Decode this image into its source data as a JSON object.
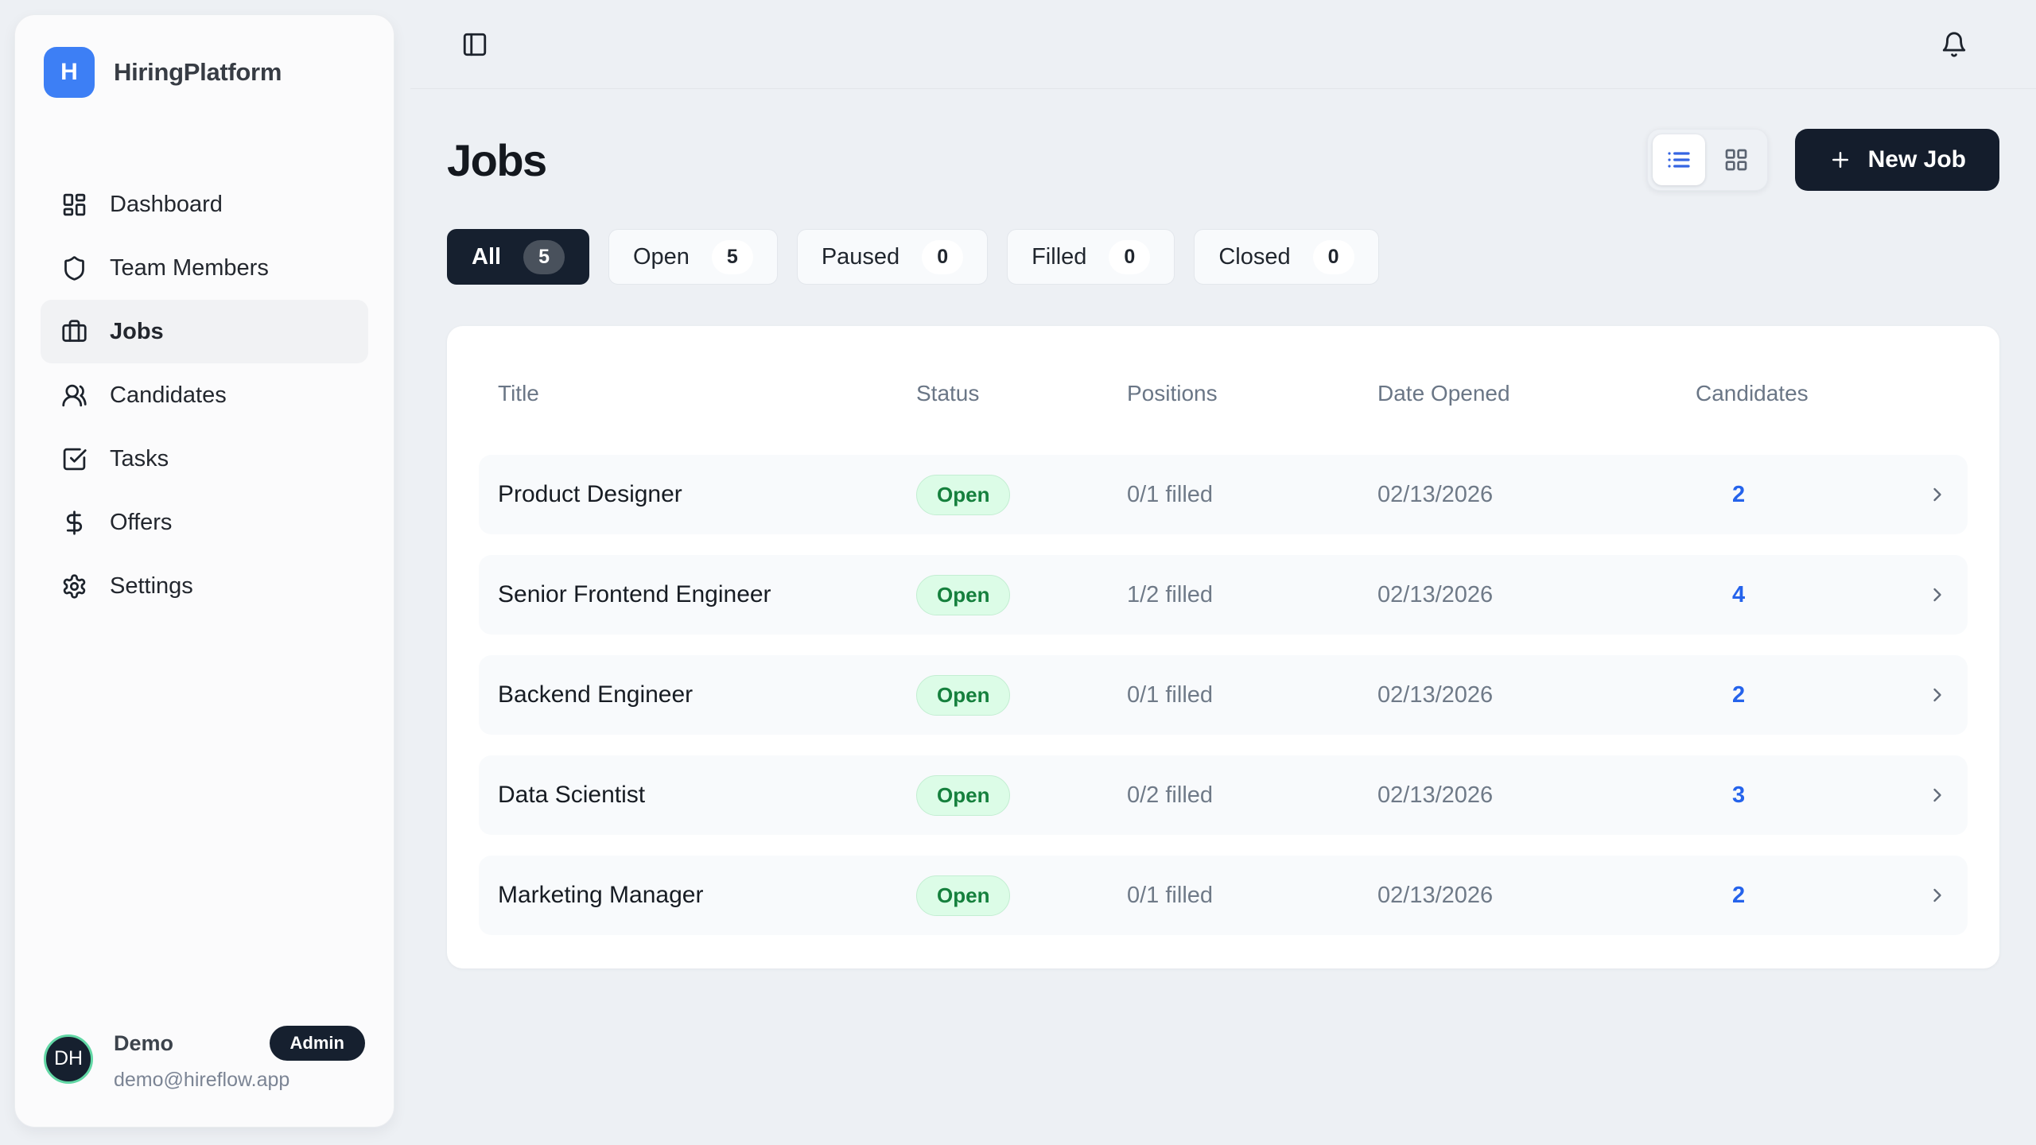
{
  "brand": {
    "name": "HiringPlatform",
    "logo_letter": "H"
  },
  "sidebar": {
    "nav": [
      {
        "label": "Dashboard",
        "icon": "dashboard",
        "active": false
      },
      {
        "label": "Team Members",
        "icon": "shield",
        "active": false
      },
      {
        "label": "Jobs",
        "icon": "briefcase",
        "active": true
      },
      {
        "label": "Candidates",
        "icon": "users",
        "active": false
      },
      {
        "label": "Tasks",
        "icon": "check-square",
        "active": false
      },
      {
        "label": "Offers",
        "icon": "dollar",
        "active": false
      },
      {
        "label": "Settings",
        "icon": "gear",
        "active": false
      }
    ],
    "user": {
      "initials": "DH",
      "name": "Demo",
      "role": "Admin",
      "email": "demo@hireflow.app"
    }
  },
  "page": {
    "title": "Jobs",
    "actions": {
      "new_job": "New Job"
    },
    "view_toggle": {
      "active": "list"
    },
    "filters": [
      {
        "label": "All",
        "count": "5",
        "active": true
      },
      {
        "label": "Open",
        "count": "5",
        "active": false
      },
      {
        "label": "Paused",
        "count": "0",
        "active": false
      },
      {
        "label": "Filled",
        "count": "0",
        "active": false
      },
      {
        "label": "Closed",
        "count": "0",
        "active": false
      }
    ],
    "table": {
      "headers": {
        "title": "Title",
        "status": "Status",
        "positions": "Positions",
        "date_opened": "Date Opened",
        "candidates": "Candidates"
      },
      "rows": [
        {
          "title": "Product Designer",
          "status": "Open",
          "positions": "0/1 filled",
          "date_opened": "02/13/2026",
          "candidates": "2"
        },
        {
          "title": "Senior Frontend Engineer",
          "status": "Open",
          "positions": "1/2 filled",
          "date_opened": "02/13/2026",
          "candidates": "4"
        },
        {
          "title": "Backend Engineer",
          "status": "Open",
          "positions": "0/1 filled",
          "date_opened": "02/13/2026",
          "candidates": "2"
        },
        {
          "title": "Data Scientist",
          "status": "Open",
          "positions": "0/2 filled",
          "date_opened": "02/13/2026",
          "candidates": "3"
        },
        {
          "title": "Marketing Manager",
          "status": "Open",
          "positions": "0/1 filled",
          "date_opened": "02/13/2026",
          "candidates": "2"
        }
      ]
    }
  },
  "colors": {
    "page_background": "#edf0f4",
    "brand_blue": "#3d7ff5",
    "dark_navy": "#16202f",
    "accent_blue": "#2563eb",
    "open_badge_background": "#dcfce7",
    "open_badge_text": "#15803d",
    "avatar_ring_green": "#62d7a5",
    "muted_text": "#6f7a88"
  }
}
